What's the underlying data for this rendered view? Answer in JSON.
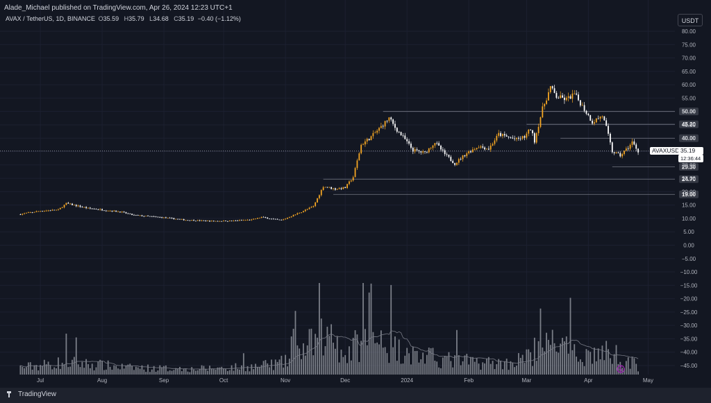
{
  "header": {
    "published": "Alade_Michael published on TradingView.com, Apr 26, 2024 12:23 UTC+1"
  },
  "legend": {
    "symbol": "AVAX / TetherUS, 1D, BINANCE",
    "o_label": "O",
    "o": "35.59",
    "h_label": "H",
    "h": "35.79",
    "l_label": "L",
    "l": "34.68",
    "c_label": "C",
    "c": "35.19",
    "change": "−0.40 (−1.12%)"
  },
  "currency_button": "USDT",
  "price_tag": {
    "symbol": "AVAXUSDT",
    "price": "35.19",
    "countdown": "12:36:44"
  },
  "brand": "TradingView",
  "colors": {
    "background": "#131722",
    "up": "#f5a623",
    "down": "#ffffff",
    "level_line": "#787b86",
    "volume": "#9598a1"
  },
  "chart_data": {
    "type": "candlestick",
    "y_axis_ticks": [
      "80.00",
      "75.00",
      "70.00",
      "65.00",
      "60.00",
      "55.00",
      "50.00",
      "45.00",
      "40.00",
      "35.00",
      "30.00",
      "25.00",
      "20.00",
      "15.00",
      "10.00",
      "5.00",
      "0.00",
      "−5.00",
      "−10.00",
      "−15.00",
      "−20.00",
      "−25.00",
      "−30.00",
      "−35.00",
      "−40.00",
      "−45.00"
    ],
    "y_range": [
      -45,
      80
    ],
    "x_axis_labels": [
      "Jul",
      "Aug",
      "Sep",
      "Oct",
      "Nov",
      "Dec",
      "2024",
      "Feb",
      "Mar",
      "Apr",
      "May"
    ],
    "x_dates": [
      "2023-07-01",
      "2023-08-01",
      "2023-09-01",
      "2023-10-01",
      "2023-11-01",
      "2023-12-01",
      "2024-01-01",
      "2024-02-01",
      "2024-03-01",
      "2024-04-01",
      "2024-05-01"
    ],
    "horizontal_levels": [
      {
        "value": 50.0,
        "label": "50.00",
        "from": "2023-12-20"
      },
      {
        "value": 45.2,
        "label": "45.20",
        "from": "2024-03-01"
      },
      {
        "value": 40.0,
        "label": "40.00",
        "from": "2024-03-18"
      },
      {
        "value": 29.3,
        "label": "29.30",
        "from": "2024-04-13"
      },
      {
        "value": 24.7,
        "label": "24.70",
        "from": "2023-11-20"
      },
      {
        "value": 19.0,
        "label": "19.00",
        "from": "2023-11-25"
      }
    ],
    "last_price": 35.19,
    "price_path": [
      [
        "2023-06-20",
        11.5
      ],
      [
        "2023-07-01",
        12.8
      ],
      [
        "2023-07-10",
        13.2
      ],
      [
        "2023-07-14",
        15.6
      ],
      [
        "2023-07-25",
        13.8
      ],
      [
        "2023-08-10",
        12.5
      ],
      [
        "2023-08-17",
        11.2
      ],
      [
        "2023-09-01",
        10.3
      ],
      [
        "2023-09-12",
        9.4
      ],
      [
        "2023-09-25",
        9.0
      ],
      [
        "2023-10-05",
        9.1
      ],
      [
        "2023-10-15",
        9.5
      ],
      [
        "2023-10-20",
        10.5
      ],
      [
        "2023-10-25",
        9.8
      ],
      [
        "2023-10-30",
        9.3
      ],
      [
        "2023-11-05",
        11.2
      ],
      [
        "2023-11-10",
        12.8
      ],
      [
        "2023-11-15",
        14.5
      ],
      [
        "2023-11-20",
        22.0
      ],
      [
        "2023-11-26",
        21.0
      ],
      [
        "2023-12-01",
        21.5
      ],
      [
        "2023-12-05",
        25.5
      ],
      [
        "2023-12-09",
        37.5
      ],
      [
        "2023-12-14",
        40.5
      ],
      [
        "2023-12-18",
        43.5
      ],
      [
        "2023-12-23",
        47.5
      ],
      [
        "2023-12-26",
        44.0
      ],
      [
        "2023-12-31",
        39.5
      ],
      [
        "2024-01-04",
        35.5
      ],
      [
        "2024-01-10",
        34.5
      ],
      [
        "2024-01-15",
        38.5
      ],
      [
        "2024-01-20",
        34.0
      ],
      [
        "2024-01-25",
        30.5
      ],
      [
        "2024-01-31",
        34.5
      ],
      [
        "2024-02-06",
        37.0
      ],
      [
        "2024-02-11",
        36.0
      ],
      [
        "2024-02-16",
        41.5
      ],
      [
        "2024-02-20",
        40.5
      ],
      [
        "2024-02-25",
        39.5
      ],
      [
        "2024-02-29",
        40.5
      ],
      [
        "2024-03-03",
        43.5
      ],
      [
        "2024-03-05",
        39.0
      ],
      [
        "2024-03-09",
        51.0
      ],
      [
        "2024-03-13",
        59.0
      ],
      [
        "2024-03-16",
        55.5
      ],
      [
        "2024-03-21",
        54.5
      ],
      [
        "2024-03-25",
        56.5
      ],
      [
        "2024-03-29",
        52.0
      ],
      [
        "2024-04-03",
        46.0
      ],
      [
        "2024-04-08",
        48.5
      ],
      [
        "2024-04-10",
        44.0
      ],
      [
        "2024-04-13",
        35.0
      ],
      [
        "2024-04-17",
        33.5
      ],
      [
        "2024-04-21",
        36.5
      ],
      [
        "2024-04-23",
        38.5
      ],
      [
        "2024-04-26",
        35.19
      ]
    ],
    "volume_path": [
      [
        "2023-06-20",
        5
      ],
      [
        "2023-07-14",
        9
      ],
      [
        "2023-08-15",
        5
      ],
      [
        "2023-09-15",
        4
      ],
      [
        "2023-10-20",
        6
      ],
      [
        "2023-11-01",
        9
      ],
      [
        "2023-11-10",
        18
      ],
      [
        "2023-11-20",
        28
      ],
      [
        "2023-12-01",
        14
      ],
      [
        "2023-12-10",
        26
      ],
      [
        "2023-12-20",
        22
      ],
      [
        "2024-01-05",
        14
      ],
      [
        "2024-01-25",
        10
      ],
      [
        "2024-02-20",
        8
      ],
      [
        "2024-03-05",
        14
      ],
      [
        "2024-03-15",
        24
      ],
      [
        "2024-03-25",
        14
      ],
      [
        "2024-04-13",
        16
      ],
      [
        "2024-04-26",
        6
      ]
    ]
  }
}
